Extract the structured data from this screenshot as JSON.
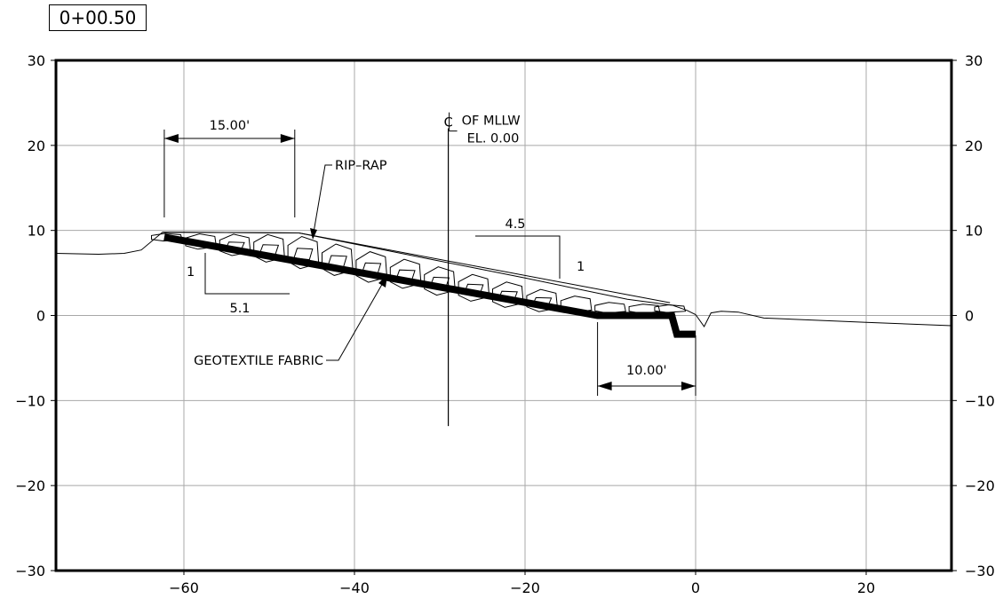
{
  "station": "0+00.50",
  "chart_data": {
    "type": "cross-section",
    "xlim": [
      -75,
      30
    ],
    "ylim": [
      -30,
      30
    ],
    "x_ticks": [
      -60,
      -40,
      -20,
      0,
      20
    ],
    "y_ticks": [
      -30,
      -20,
      -10,
      0,
      10,
      20,
      30
    ],
    "x_tick_labels": [
      "−60",
      "−40",
      "−20",
      "0",
      "20"
    ],
    "y_tick_labels": [
      "−30",
      "−20",
      "−10",
      "0",
      "10",
      "20",
      "30"
    ],
    "grid": true,
    "existing_ground": [
      [
        -75,
        7.3
      ],
      [
        -70,
        7.2
      ],
      [
        -67,
        7.3
      ],
      [
        -65,
        7.7
      ],
      [
        -62.5,
        9.8
      ],
      [
        -46.5,
        9.7
      ],
      [
        -34,
        7.2
      ],
      [
        -20,
        4.4
      ],
      [
        -8,
        1.9
      ],
      [
        -2.7,
        1.2
      ],
      [
        -1,
        0.6
      ],
      [
        0,
        0.1
      ],
      [
        1,
        -1.3
      ],
      [
        1.8,
        0.3
      ],
      [
        3,
        0.5
      ],
      [
        5,
        0.4
      ],
      [
        8,
        -0.3
      ],
      [
        20,
        -0.8
      ],
      [
        30,
        -1.2
      ]
    ],
    "rip_rap_top": [
      [
        -62.5,
        9.8
      ],
      [
        -46.5,
        9.7
      ],
      [
        -3,
        1.5
      ]
    ],
    "geotextile_fabric": [
      [
        -62.3,
        9.2
      ],
      [
        -11.5,
        0
      ],
      [
        -2.8,
        0
      ],
      [
        -2.2,
        -2.2
      ],
      [
        0,
        -2.2
      ]
    ],
    "slope_upper": {
      "run": "4.5",
      "rise": "1"
    },
    "slope_lower": {
      "run": "5.1",
      "rise": "1"
    },
    "dim_crest_width": {
      "label": "15.00'",
      "from": -62.3,
      "to": -47
    },
    "dim_toe_width": {
      "label": "10.00'",
      "from": -11.5,
      "to": 0
    },
    "centerline": {
      "x": -29,
      "label_line1": "OF MLLW",
      "label_line2": "EL. 0.00"
    },
    "callout_riprap": "RIP–RAP",
    "callout_fabric": "GEOTEXTILE FABRIC"
  }
}
